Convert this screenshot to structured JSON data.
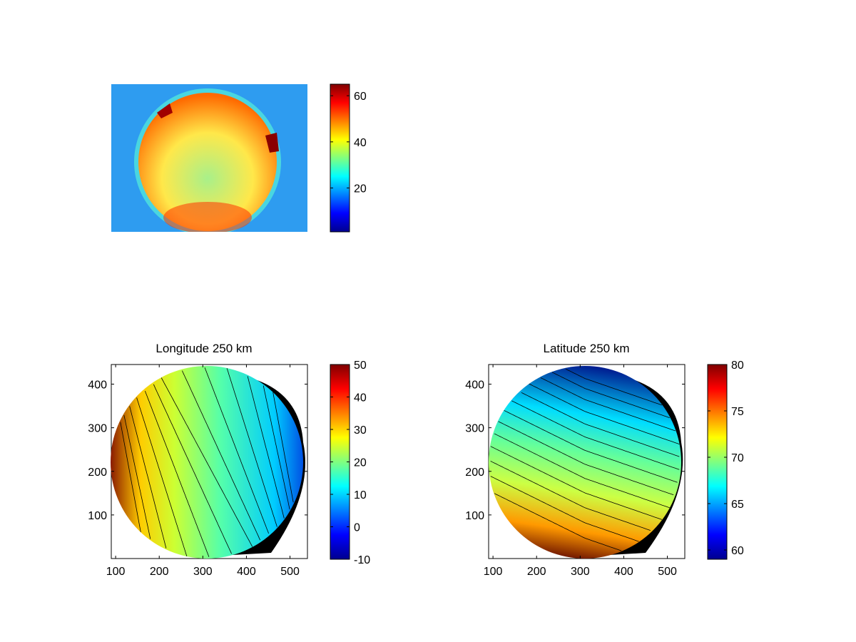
{
  "chart_data": [
    {
      "type": "heatmap",
      "title": "",
      "description_of_content": "",
      "colorbar": {
        "ticks": [
          20,
          40,
          60
        ],
        "range": [
          1,
          65
        ]
      }
    },
    {
      "type": "heatmap",
      "title": "Longitude 250 km",
      "xlabel": "",
      "ylabel": "",
      "xlim": [
        90,
        540
      ],
      "ylim": [
        0,
        445
      ],
      "xticks": [
        100,
        200,
        300,
        400,
        500
      ],
      "yticks": [
        100,
        200,
        300,
        400
      ],
      "disk": {
        "center": [
          317,
          222
        ],
        "radius": 220
      },
      "gradient_direction": "right-to-left",
      "value_range": [
        -10,
        50
      ],
      "colorbar": {
        "ticks": [
          -10,
          0,
          10,
          20,
          30,
          40,
          50
        ],
        "range": [
          -10,
          50
        ]
      }
    },
    {
      "type": "heatmap",
      "title": "Latitude 250 km",
      "xlabel": "",
      "ylabel": "",
      "xlim": [
        90,
        540
      ],
      "ylim": [
        0,
        445
      ],
      "xticks": [
        100,
        200,
        300,
        400,
        500
      ],
      "yticks": [
        100,
        200,
        300,
        400
      ],
      "disk": {
        "center": [
          317,
          222
        ],
        "radius": 220
      },
      "gradient_direction": "top-to-bottom",
      "value_range": [
        59,
        80
      ],
      "colorbar": {
        "ticks": [
          60,
          65,
          70,
          75,
          80
        ],
        "range": [
          59,
          80
        ]
      }
    }
  ]
}
